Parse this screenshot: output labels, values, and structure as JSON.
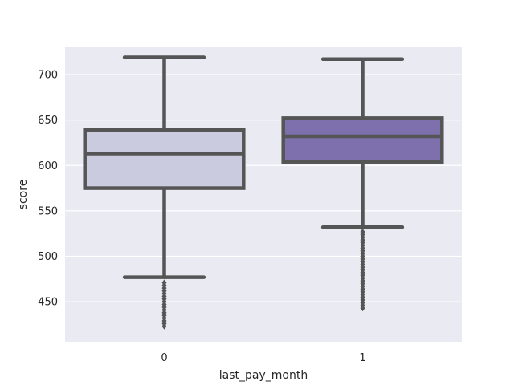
{
  "chart_data": {
    "type": "box",
    "xlabel": "last_pay_month",
    "ylabel": "score",
    "categories": [
      "0",
      "1"
    ],
    "ylim": [
      406,
      730
    ],
    "yticks": [
      450,
      500,
      550,
      600,
      650,
      700
    ],
    "grid": true,
    "boxes": [
      {
        "category": "0",
        "whisker_low": 477,
        "q1": 575,
        "median": 613,
        "q3": 639,
        "whisker_high": 719,
        "outliers": [
          471,
          468,
          465,
          462,
          459,
          456,
          453,
          450,
          447,
          444,
          441,
          438,
          435,
          432,
          429,
          426,
          423
        ],
        "fill": "#cbcbe0"
      },
      {
        "category": "1",
        "whisker_low": 532,
        "q1": 604,
        "median": 632,
        "q3": 652,
        "whisker_high": 717,
        "outliers": [
          527,
          524,
          521,
          518,
          515,
          512,
          509,
          506,
          503,
          500,
          497,
          494,
          491,
          488,
          485,
          482,
          479,
          476,
          473,
          470,
          467,
          464,
          461,
          458,
          455,
          452,
          449,
          446,
          443
        ],
        "fill": "#7d70ad"
      }
    ],
    "colors": {
      "plot_background": "#eaeaf2",
      "grid": "#ffffff",
      "line": "#555555"
    }
  }
}
